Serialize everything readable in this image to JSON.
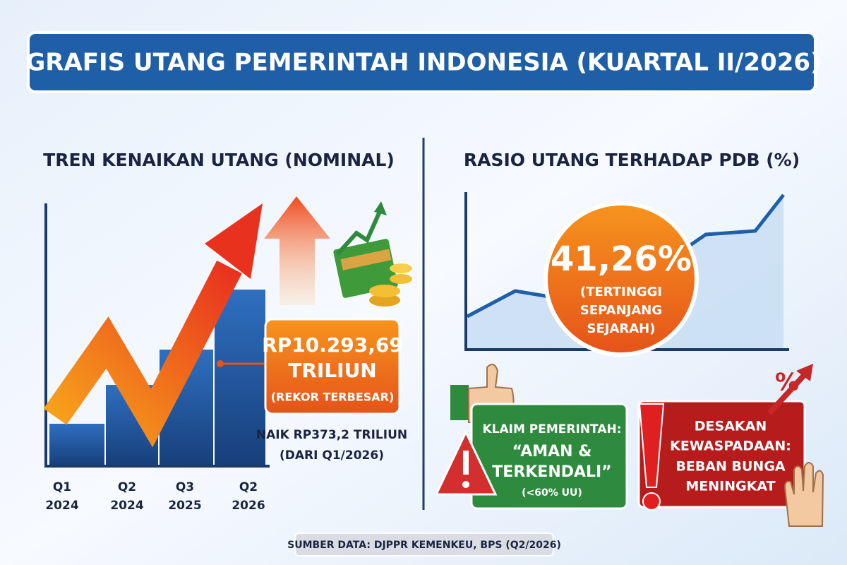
{
  "title": "GRAFIS UTANG PEMERINTAH INDONESIA (KUARTAL II/2026)",
  "left": {
    "heading": "TREN KENAIKAN UTANG (NOMINAL)",
    "periods": [
      [
        "Q1",
        "2024"
      ],
      [
        "Q2",
        "2024"
      ],
      [
        "Q3",
        "2025"
      ],
      [
        "Q2",
        "2026"
      ]
    ],
    "callout": [
      "RP10.293,69",
      "TRILIUN",
      "(REKOR TERBESAR)"
    ],
    "note": [
      "NAIK RP373,2 TRILIUN",
      "(DARI Q1/2026)"
    ]
  },
  "right": {
    "heading": "RASIO UTANG TERHADAP PDB (%)",
    "badge": [
      "41,26%",
      "(TERTINGGI",
      "SEPANJANG",
      "SEJARAH)"
    ],
    "claim": [
      "KLAIM PEMERINTAH:",
      "“AMAN &",
      "TERKENDALI”",
      "(<60% UU)"
    ],
    "warning": [
      "DESAKAN",
      "KEWASPADAAN:",
      "BEBAN BUNGA",
      "MENINGKAT"
    ]
  },
  "source": "SUMBER DATA: DJPPR KEMENKEU, BPS (Q2/2026)"
}
